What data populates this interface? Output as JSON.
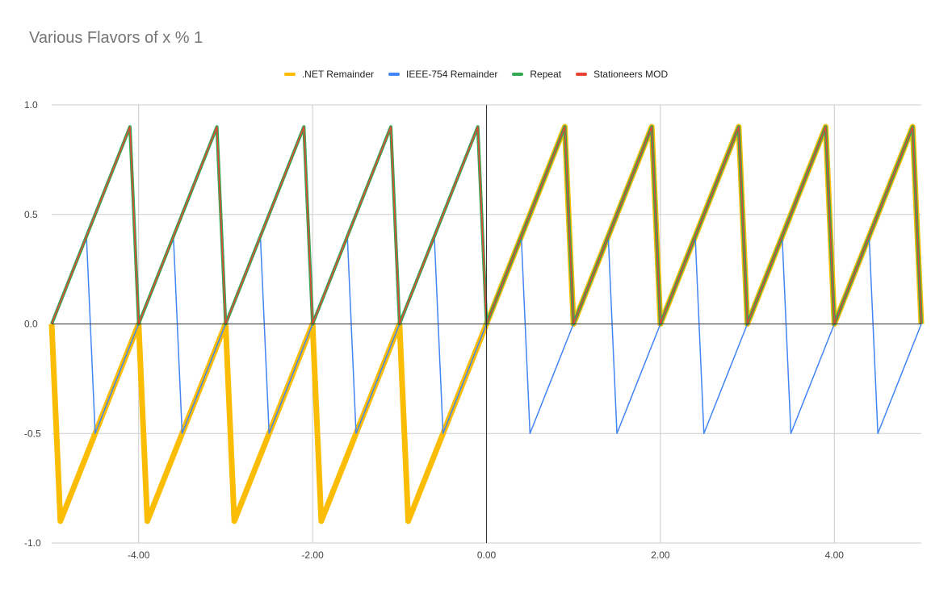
{
  "chart_data": {
    "type": "line",
    "title": "Various Flavors of x % 1",
    "xlabel": "",
    "ylabel": "",
    "xlim": [
      -5,
      5
    ],
    "ylim": [
      -1,
      1
    ],
    "grid": true,
    "legend_position": "top",
    "x_ticks": [
      -4,
      -2,
      0,
      2,
      4
    ],
    "x_tick_labels": [
      "-4.00",
      "-2.00",
      "0.00",
      "2.00",
      "4.00"
    ],
    "y_ticks": [
      -1,
      -0.5,
      0,
      0.5,
      1
    ],
    "y_tick_labels": [
      "-1.0",
      "-0.5",
      "0.0",
      "0.5",
      "1.0"
    ],
    "x_step": 0.1,
    "series": [
      {
        "name": ".NET Remainder",
        "color": "#fbbc04",
        "function": "truncated remainder: x - trunc(x)"
      },
      {
        "name": "IEEE-754 Remainder",
        "color": "#4285f4",
        "function": "x - round(x)"
      },
      {
        "name": "Repeat",
        "color": "#34a853",
        "function": "x - floor(x)"
      },
      {
        "name": "Stationeers MOD",
        "color": "#ea4335",
        "function": "x - floor(x)"
      }
    ]
  }
}
